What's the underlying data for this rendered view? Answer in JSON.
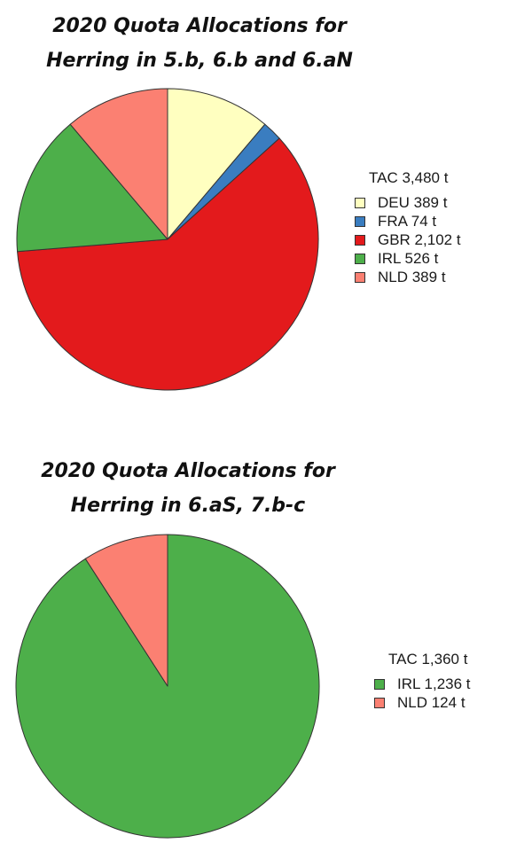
{
  "chart_data": [
    {
      "type": "pie",
      "title_lines": [
        "2020 Quota Allocations for",
        "Herring in 5.b, 6.b and 6.aN"
      ],
      "legend_title": "TAC 3,480 t",
      "start_angle_deg": 0,
      "direction": "clockwise",
      "legend_placement": "right",
      "slices": [
        {
          "code": "DEU",
          "value": 389,
          "label": "DEU 389 t",
          "color": "#FFFFC0"
        },
        {
          "code": "FRA",
          "value": 74,
          "label": "FRA 74 t",
          "color": "#3A7DC0"
        },
        {
          "code": "GBR",
          "value": 2102,
          "label": "GBR 2,102 t",
          "color": "#E31A1C"
        },
        {
          "code": "IRL",
          "value": 526,
          "label": "IRL 526 t",
          "color": "#4DAF4A"
        },
        {
          "code": "NLD",
          "value": 389,
          "label": "NLD 389 t",
          "color": "#FB8072"
        }
      ]
    },
    {
      "type": "pie",
      "title_lines": [
        "2020 Quota Allocations for",
        "Herring in 6.aS, 7.b-c"
      ],
      "legend_title": "TAC 1,360 t",
      "start_angle_deg": 0,
      "direction": "clockwise",
      "legend_placement": "right",
      "slices": [
        {
          "code": "IRL",
          "value": 1236,
          "label": "IRL 1,236 t",
          "color": "#4DAF4A"
        },
        {
          "code": "NLD",
          "value": 124,
          "label": "NLD 124 t",
          "color": "#FB8072"
        }
      ]
    }
  ]
}
